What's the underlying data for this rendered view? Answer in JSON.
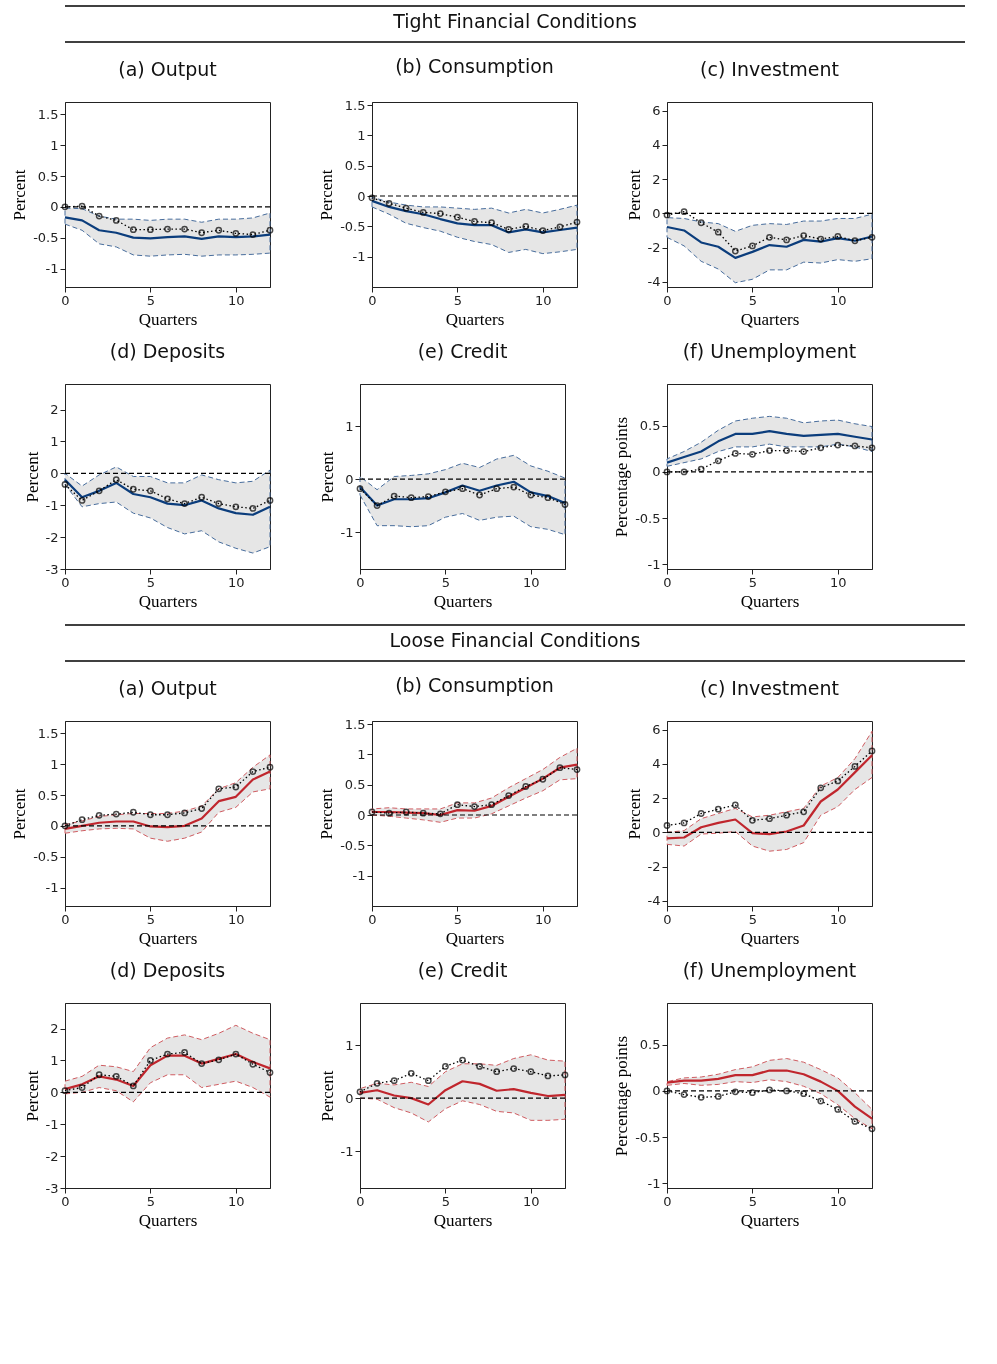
{
  "chart_data": [
    {
      "type": "line",
      "title": "(a) Output",
      "annotations": [
        "Tight Financial Conditions"
      ],
      "xlabel": "Quarters",
      "ylabel": "Percent",
      "x": [
        0,
        1,
        2,
        3,
        4,
        5,
        6,
        7,
        8,
        9,
        10,
        11,
        12
      ],
      "xlim": [
        0,
        12
      ],
      "xticks": [
        0,
        5,
        10
      ],
      "ylim": [
        -1.3,
        1.7
      ],
      "yticks": [
        -1,
        -0.5,
        0,
        0.5,
        1,
        1.5
      ],
      "line_style": "solid",
      "ref_lines": [
        {
          "axis": "y",
          "value": 0,
          "line_style": "dashed",
          "color": "#000000"
        }
      ],
      "series": [
        {
          "color": "#0b3d7c",
          "values": [
            -0.17,
            -0.22,
            -0.38,
            -0.42,
            -0.5,
            -0.51,
            -0.49,
            -0.48,
            -0.52,
            -0.48,
            -0.49,
            -0.48,
            -0.45
          ],
          "lower": [
            -0.28,
            -0.38,
            -0.6,
            -0.65,
            -0.78,
            -0.8,
            -0.78,
            -0.77,
            -0.8,
            -0.78,
            -0.78,
            -0.77,
            -0.75
          ],
          "upper": [
            -0.02,
            -0.03,
            -0.15,
            -0.2,
            -0.2,
            -0.22,
            -0.2,
            -0.2,
            -0.25,
            -0.2,
            -0.2,
            -0.18,
            -0.1
          ]
        },
        {
          "color": "#000000",
          "line_style": "dotted",
          "marker": "circle",
          "values": [
            0,
            0.01,
            -0.15,
            -0.22,
            -0.37,
            -0.37,
            -0.36,
            -0.36,
            -0.42,
            -0.38,
            -0.43,
            -0.45,
            -0.38
          ]
        }
      ]
    },
    {
      "type": "line",
      "title": "(b) Consumption",
      "xlabel": "Quarters",
      "ylabel": "Percent",
      "x": [
        0,
        1,
        2,
        3,
        4,
        5,
        6,
        7,
        8,
        9,
        10,
        11,
        12
      ],
      "xlim": [
        0,
        12
      ],
      "xticks": [
        0,
        5,
        10
      ],
      "ylim": [
        -1.5,
        1.55
      ],
      "yticks": [
        -1,
        -0.5,
        0,
        0.5,
        1,
        1.5
      ],
      "line_style": "solid",
      "ref_lines": [
        {
          "axis": "y",
          "value": 0,
          "line_style": "dashed",
          "color": "#000000"
        }
      ],
      "series": [
        {
          "color": "#0b3d7c",
          "values": [
            -0.08,
            -0.18,
            -0.25,
            -0.3,
            -0.38,
            -0.45,
            -0.48,
            -0.48,
            -0.6,
            -0.55,
            -0.6,
            -0.56,
            -0.52
          ],
          "lower": [
            -0.18,
            -0.3,
            -0.45,
            -0.52,
            -0.58,
            -0.68,
            -0.75,
            -0.8,
            -0.93,
            -0.88,
            -0.95,
            -0.92,
            -0.88
          ],
          "upper": [
            -0.02,
            -0.1,
            -0.15,
            -0.18,
            -0.18,
            -0.2,
            -0.22,
            -0.2,
            -0.28,
            -0.22,
            -0.28,
            -0.22,
            -0.15
          ]
        },
        {
          "color": "#000000",
          "line_style": "dotted",
          "marker": "circle",
          "values": [
            -0.03,
            -0.12,
            -0.2,
            -0.27,
            -0.29,
            -0.35,
            -0.42,
            -0.44,
            -0.55,
            -0.5,
            -0.57,
            -0.51,
            -0.43
          ]
        }
      ]
    },
    {
      "type": "line",
      "title": "(c) Investment",
      "xlabel": "Quarters",
      "ylabel": "Percent",
      "x": [
        0,
        1,
        2,
        3,
        4,
        5,
        6,
        7,
        8,
        9,
        10,
        11,
        12
      ],
      "xlim": [
        0,
        12
      ],
      "xticks": [
        0,
        5,
        10
      ],
      "ylim": [
        -4.3,
        6.5
      ],
      "yticks": [
        -4,
        -2,
        0,
        2,
        4,
        6
      ],
      "line_style": "solid",
      "ref_lines": [
        {
          "axis": "y",
          "value": 0,
          "line_style": "dashed",
          "color": "#000000"
        }
      ],
      "series": [
        {
          "color": "#0b3d7c",
          "values": [
            -0.8,
            -1.0,
            -1.7,
            -1.95,
            -2.6,
            -2.25,
            -1.85,
            -1.95,
            -1.55,
            -1.65,
            -1.45,
            -1.6,
            -1.35
          ],
          "lower": [
            -1.4,
            -1.9,
            -2.8,
            -3.25,
            -4.05,
            -3.85,
            -3.3,
            -3.3,
            -2.85,
            -2.9,
            -2.7,
            -2.8,
            -2.65
          ],
          "upper": [
            -0.25,
            -0.3,
            -0.5,
            -0.6,
            -1.05,
            -0.7,
            -0.6,
            -0.65,
            -0.45,
            -0.45,
            -0.3,
            -0.3,
            -0.05
          ]
        },
        {
          "color": "#000000",
          "line_style": "dotted",
          "marker": "circle",
          "values": [
            -0.1,
            0.1,
            -0.55,
            -1.1,
            -2.2,
            -1.9,
            -1.4,
            -1.55,
            -1.3,
            -1.5,
            -1.35,
            -1.6,
            -1.4
          ]
        }
      ]
    },
    {
      "type": "line",
      "title": "(d) Deposits",
      "xlabel": "Quarters",
      "ylabel": "Percent",
      "x": [
        0,
        1,
        2,
        3,
        4,
        5,
        6,
        7,
        8,
        9,
        10,
        11,
        12
      ],
      "xlim": [
        0,
        12
      ],
      "xticks": [
        0,
        5,
        10
      ],
      "ylim": [
        -3,
        2.8
      ],
      "yticks": [
        -3,
        -2,
        -1,
        0,
        1,
        2
      ],
      "line_style": "solid",
      "ref_lines": [
        {
          "axis": "y",
          "value": 0,
          "line_style": "dashed",
          "color": "#000000"
        }
      ],
      "series": [
        {
          "color": "#0b3d7c",
          "values": [
            -0.2,
            -0.75,
            -0.55,
            -0.3,
            -0.65,
            -0.75,
            -0.95,
            -1.0,
            -0.85,
            -1.1,
            -1.25,
            -1.3,
            -1.05
          ],
          "lower": [
            -0.35,
            -1.05,
            -0.95,
            -0.9,
            -1.25,
            -1.4,
            -1.7,
            -1.9,
            -1.8,
            -2.15,
            -2.35,
            -2.5,
            -2.3
          ],
          "upper": [
            0.0,
            -0.4,
            -0.05,
            0.2,
            -0.1,
            -0.1,
            -0.3,
            -0.3,
            -0.05,
            -0.2,
            -0.3,
            -0.25,
            0.1
          ]
        },
        {
          "color": "#000000",
          "line_style": "dotted",
          "marker": "circle",
          "values": [
            -0.35,
            -0.85,
            -0.55,
            -0.2,
            -0.5,
            -0.55,
            -0.8,
            -0.95,
            -0.75,
            -0.95,
            -1.05,
            -1.1,
            -0.85
          ]
        }
      ]
    },
    {
      "type": "line",
      "title": "(e) Credit",
      "xlabel": "Quarters",
      "ylabel": "Percent",
      "x": [
        0,
        1,
        2,
        3,
        4,
        5,
        6,
        7,
        8,
        9,
        10,
        11,
        12
      ],
      "xlim": [
        0,
        12
      ],
      "xticks": [
        0,
        5,
        10
      ],
      "ylim": [
        -1.7,
        1.8
      ],
      "yticks": [
        -1,
        0,
        1
      ],
      "line_style": "solid",
      "ref_lines": [
        {
          "axis": "y",
          "value": 0,
          "line_style": "dashed",
          "color": "#000000"
        }
      ],
      "series": [
        {
          "color": "#0b3d7c",
          "values": [
            -0.15,
            -0.5,
            -0.38,
            -0.38,
            -0.36,
            -0.25,
            -0.12,
            -0.22,
            -0.12,
            -0.05,
            -0.25,
            -0.32,
            -0.45
          ],
          "lower": [
            -0.3,
            -0.88,
            -0.88,
            -0.9,
            -0.88,
            -0.72,
            -0.65,
            -0.78,
            -0.72,
            -0.7,
            -0.9,
            -0.95,
            -1.05
          ],
          "upper": [
            0.05,
            -0.2,
            0.05,
            0.07,
            0.1,
            0.18,
            0.3,
            0.22,
            0.38,
            0.45,
            0.25,
            0.15,
            0.02
          ]
        },
        {
          "color": "#000000",
          "line_style": "dotted",
          "marker": "circle",
          "values": [
            -0.18,
            -0.5,
            -0.32,
            -0.35,
            -0.33,
            -0.24,
            -0.18,
            -0.3,
            -0.18,
            -0.15,
            -0.3,
            -0.35,
            -0.48
          ]
        }
      ]
    },
    {
      "type": "line",
      "title": "(f) Unemployment",
      "xlabel": "Quarters",
      "ylabel": "Percentage points",
      "x": [
        0,
        1,
        2,
        3,
        4,
        5,
        6,
        7,
        8,
        9,
        10,
        11,
        12
      ],
      "xlim": [
        0,
        12
      ],
      "xticks": [
        0,
        5,
        10
      ],
      "ylim": [
        -1.05,
        0.95
      ],
      "yticks": [
        -1,
        -0.5,
        0,
        0.5
      ],
      "line_style": "solid",
      "ref_lines": [
        {
          "axis": "y",
          "value": 0,
          "line_style": "dashed",
          "color": "#000000"
        }
      ],
      "series": [
        {
          "color": "#0b3d7c",
          "values": [
            0.1,
            0.16,
            0.22,
            0.33,
            0.41,
            0.41,
            0.44,
            0.41,
            0.39,
            0.4,
            0.41,
            0.38,
            0.35
          ],
          "lower": [
            0.06,
            0.1,
            0.14,
            0.22,
            0.27,
            0.27,
            0.3,
            0.27,
            0.27,
            0.27,
            0.3,
            0.27,
            0.22
          ],
          "upper": [
            0.14,
            0.22,
            0.32,
            0.45,
            0.55,
            0.58,
            0.6,
            0.58,
            0.53,
            0.55,
            0.56,
            0.52,
            0.49
          ]
        },
        {
          "color": "#000000",
          "line_style": "dotted",
          "marker": "circle",
          "values": [
            0,
            0,
            0.03,
            0.12,
            0.2,
            0.19,
            0.23,
            0.23,
            0.22,
            0.26,
            0.29,
            0.28,
            0.26
          ]
        }
      ]
    },
    {
      "type": "line",
      "title": "(a) Output",
      "annotations": [
        "Loose Financial Conditions"
      ],
      "xlabel": "Quarters",
      "ylabel": "Percent",
      "x": [
        0,
        1,
        2,
        3,
        4,
        5,
        6,
        7,
        8,
        9,
        10,
        11,
        12
      ],
      "xlim": [
        0,
        12
      ],
      "xticks": [
        0,
        5,
        10
      ],
      "ylim": [
        -1.3,
        1.7
      ],
      "yticks": [
        -1,
        -0.5,
        0,
        0.5,
        1,
        1.5
      ],
      "line_style": "solid",
      "ref_lines": [
        {
          "axis": "y",
          "value": 0,
          "line_style": "dashed",
          "color": "#000000"
        }
      ],
      "series": [
        {
          "color": "#c0262d",
          "values": [
            -0.05,
            0.0,
            0.05,
            0.07,
            0.07,
            -0.01,
            -0.02,
            0.0,
            0.12,
            0.4,
            0.47,
            0.75,
            0.88
          ],
          "lower": [
            -0.12,
            -0.08,
            -0.05,
            -0.04,
            -0.05,
            -0.2,
            -0.25,
            -0.2,
            -0.1,
            0.22,
            0.3,
            0.55,
            0.6
          ],
          "upper": [
            0.02,
            0.08,
            0.15,
            0.18,
            0.2,
            0.2,
            0.2,
            0.24,
            0.32,
            0.6,
            0.7,
            0.95,
            1.15
          ]
        },
        {
          "color": "#000000",
          "line_style": "dotted",
          "marker": "circle",
          "values": [
            0.0,
            0.1,
            0.17,
            0.19,
            0.22,
            0.18,
            0.18,
            0.21,
            0.28,
            0.6,
            0.63,
            0.88,
            0.95
          ]
        }
      ]
    },
    {
      "type": "line",
      "title": "(b) Consumption",
      "xlabel": "Quarters",
      "ylabel": "Percent",
      "x": [
        0,
        1,
        2,
        3,
        4,
        5,
        6,
        7,
        8,
        9,
        10,
        11,
        12
      ],
      "xlim": [
        0,
        12
      ],
      "xticks": [
        0,
        5,
        10
      ],
      "ylim": [
        -1.5,
        1.55
      ],
      "yticks": [
        -1,
        -0.5,
        0,
        0.5,
        1,
        1.5
      ],
      "line_style": "solid",
      "ref_lines": [
        {
          "axis": "y",
          "value": 0,
          "line_style": "dashed",
          "color": "#000000"
        }
      ],
      "series": [
        {
          "color": "#c0262d",
          "values": [
            0.05,
            0.05,
            0.04,
            0.03,
            0.0,
            0.08,
            0.07,
            0.15,
            0.3,
            0.45,
            0.6,
            0.78,
            0.83
          ],
          "lower": [
            0.0,
            -0.02,
            -0.05,
            -0.08,
            -0.12,
            -0.05,
            -0.05,
            0.02,
            0.15,
            0.28,
            0.4,
            0.58,
            0.6
          ],
          "upper": [
            0.1,
            0.12,
            0.1,
            0.1,
            0.1,
            0.2,
            0.2,
            0.28,
            0.45,
            0.6,
            0.75,
            0.95,
            1.1
          ]
        },
        {
          "color": "#000000",
          "line_style": "dotted",
          "marker": "circle",
          "values": [
            0.05,
            0.03,
            0.05,
            0.03,
            0.02,
            0.17,
            0.14,
            0.17,
            0.32,
            0.47,
            0.59,
            0.78,
            0.75
          ]
        }
      ]
    },
    {
      "type": "line",
      "title": "(c) Investment",
      "xlabel": "Quarters",
      "ylabel": "Percent",
      "x": [
        0,
        1,
        2,
        3,
        4,
        5,
        6,
        7,
        8,
        9,
        10,
        11,
        12
      ],
      "xlim": [
        0,
        12
      ],
      "xticks": [
        0,
        5,
        10
      ],
      "ylim": [
        -4.3,
        6.5
      ],
      "yticks": [
        -4,
        -2,
        0,
        2,
        4,
        6
      ],
      "line_style": "solid",
      "ref_lines": [
        {
          "axis": "y",
          "value": 0,
          "line_style": "dashed",
          "color": "#000000"
        }
      ],
      "series": [
        {
          "color": "#c0262d",
          "values": [
            -0.35,
            -0.3,
            0.3,
            0.55,
            0.75,
            -0.05,
            -0.1,
            0.05,
            0.4,
            1.8,
            2.5,
            3.5,
            4.5
          ],
          "lower": [
            -0.7,
            -0.8,
            -0.1,
            -0.05,
            0.05,
            -0.8,
            -1.1,
            -1.0,
            -0.6,
            1.0,
            1.5,
            2.5,
            3.2
          ],
          "upper": [
            0.0,
            0.1,
            0.8,
            1.1,
            1.4,
            0.9,
            1.0,
            1.2,
            1.4,
            2.7,
            3.2,
            4.3,
            5.9
          ]
        },
        {
          "color": "#000000",
          "line_style": "dotted",
          "marker": "circle",
          "values": [
            0.4,
            0.55,
            1.1,
            1.35,
            1.6,
            0.7,
            0.8,
            1.0,
            1.2,
            2.6,
            3.0,
            3.85,
            4.75
          ]
        }
      ]
    },
    {
      "type": "line",
      "title": "(d) Deposits",
      "xlabel": "Quarters",
      "ylabel": "Percent",
      "x": [
        0,
        1,
        2,
        3,
        4,
        5,
        6,
        7,
        8,
        9,
        10,
        11,
        12
      ],
      "xlim": [
        0,
        12
      ],
      "xticks": [
        0,
        5,
        10
      ],
      "ylim": [
        -3,
        2.8
      ],
      "yticks": [
        -3,
        -2,
        -1,
        0,
        1,
        2
      ],
      "line_style": "solid",
      "ref_lines": [
        {
          "axis": "y",
          "value": 0,
          "line_style": "dashed",
          "color": "#000000"
        }
      ],
      "series": [
        {
          "color": "#c0262d",
          "values": [
            0.1,
            0.25,
            0.5,
            0.4,
            0.2,
            0.85,
            1.15,
            1.15,
            0.9,
            1.05,
            1.2,
            0.95,
            0.75
          ],
          "lower": [
            -0.05,
            0.0,
            0.15,
            0.05,
            -0.3,
            0.3,
            0.55,
            0.55,
            0.15,
            0.25,
            0.35,
            0.15,
            -0.15
          ],
          "upper": [
            0.35,
            0.5,
            0.85,
            0.8,
            0.65,
            1.4,
            1.7,
            1.8,
            1.65,
            1.85,
            2.1,
            1.85,
            1.65
          ]
        },
        {
          "color": "#000000",
          "line_style": "dotted",
          "marker": "circle",
          "values": [
            0.05,
            0.15,
            0.55,
            0.5,
            0.2,
            1.0,
            1.2,
            1.25,
            0.9,
            1.02,
            1.2,
            0.88,
            0.62
          ]
        }
      ]
    },
    {
      "type": "line",
      "title": "(e) Credit",
      "xlabel": "Quarters",
      "ylabel": "Percent",
      "x": [
        0,
        1,
        2,
        3,
        4,
        5,
        6,
        7,
        8,
        9,
        10,
        11,
        12
      ],
      "xlim": [
        0,
        12
      ],
      "xticks": [
        0,
        5,
        10
      ],
      "ylim": [
        -1.7,
        1.8
      ],
      "yticks": [
        -1,
        0,
        1
      ],
      "line_style": "solid",
      "ref_lines": [
        {
          "axis": "y",
          "value": 0,
          "line_style": "dashed",
          "color": "#000000"
        }
      ],
      "series": [
        {
          "color": "#c0262d",
          "values": [
            0.1,
            0.15,
            0.05,
            0.0,
            -0.12,
            0.15,
            0.32,
            0.27,
            0.14,
            0.17,
            0.1,
            0.04,
            0.06
          ],
          "lower": [
            0.0,
            -0.02,
            -0.18,
            -0.28,
            -0.45,
            -0.2,
            -0.05,
            -0.12,
            -0.25,
            -0.28,
            -0.42,
            -0.42,
            -0.4
          ],
          "upper": [
            0.18,
            0.28,
            0.25,
            0.3,
            0.22,
            0.5,
            0.65,
            0.65,
            0.62,
            0.75,
            0.82,
            0.72,
            0.7
          ]
        },
        {
          "color": "#000000",
          "line_style": "dotted",
          "marker": "circle",
          "values": [
            0.12,
            0.28,
            0.33,
            0.47,
            0.33,
            0.6,
            0.72,
            0.6,
            0.5,
            0.56,
            0.5,
            0.42,
            0.44
          ]
        }
      ]
    },
    {
      "type": "line",
      "title": "(f) Unemployment",
      "xlabel": "Quarters",
      "ylabel": "Percentage points",
      "x": [
        0,
        1,
        2,
        3,
        4,
        5,
        6,
        7,
        8,
        9,
        10,
        11,
        12
      ],
      "xlim": [
        0,
        12
      ],
      "xticks": [
        0,
        5,
        10
      ],
      "ylim": [
        -1.05,
        0.95
      ],
      "yticks": [
        -1,
        -0.5,
        0,
        0.5
      ],
      "line_style": "solid",
      "ref_lines": [
        {
          "axis": "y",
          "value": 0,
          "line_style": "dashed",
          "color": "#000000"
        }
      ],
      "series": [
        {
          "color": "#c0262d",
          "values": [
            0.09,
            0.11,
            0.11,
            0.13,
            0.17,
            0.17,
            0.22,
            0.22,
            0.18,
            0.1,
            0.0,
            -0.17,
            -0.3
          ],
          "lower": [
            0.06,
            0.08,
            0.06,
            0.07,
            0.1,
            0.09,
            0.12,
            0.1,
            0.05,
            -0.03,
            -0.15,
            -0.3,
            -0.41
          ],
          "upper": [
            0.1,
            0.14,
            0.15,
            0.18,
            0.23,
            0.26,
            0.33,
            0.35,
            0.31,
            0.23,
            0.14,
            -0.02,
            -0.2
          ]
        },
        {
          "color": "#000000",
          "line_style": "dotted",
          "marker": "circle",
          "values": [
            0.0,
            -0.04,
            -0.07,
            -0.06,
            -0.01,
            -0.02,
            0.01,
            0.0,
            -0.03,
            -0.11,
            -0.2,
            -0.33,
            -0.41
          ]
        }
      ]
    }
  ]
}
